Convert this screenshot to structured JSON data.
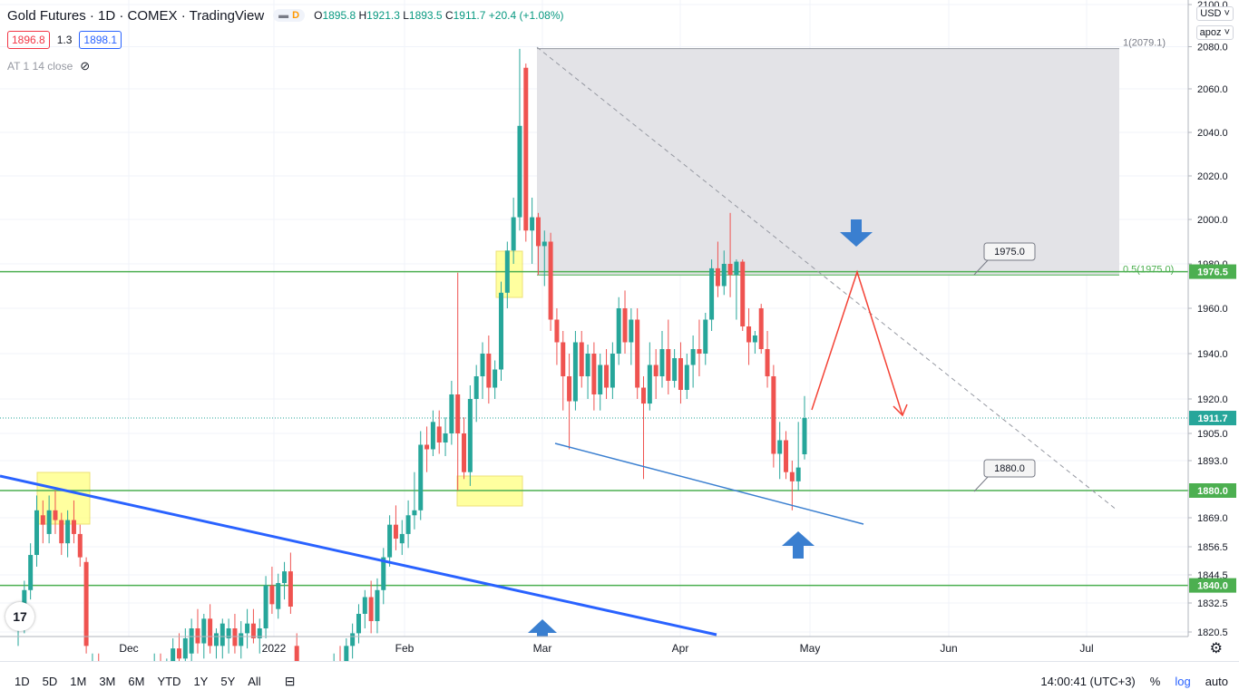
{
  "header": {
    "title": "Gold Futures · 1D · COMEX · TradingView",
    "pill_left": "",
    "pill_right": "D",
    "ohlc": {
      "o_label": "O",
      "o": "1895.8",
      "h_label": "H",
      "h": "1921.3",
      "l_label": "L",
      "l": "1893.5",
      "c_label": "C",
      "c": "1911.7",
      "chg": "+20.4 (+1.08%)"
    }
  },
  "trade": {
    "sell": "1896.8",
    "spread": "1.3",
    "buy": "1898.1"
  },
  "indicator": {
    "label": "AT 1 14 close"
  },
  "scale": {
    "currency": "USD ˅",
    "mode": "apoz ˅"
  },
  "bottom": {
    "timeframes": [
      "1D",
      "5D",
      "1M",
      "3M",
      "6M",
      "YTD",
      "1Y",
      "5Y",
      "All"
    ],
    "time": "14:00:41 (UTC+3)",
    "percent": "%",
    "log": "log",
    "auto": "auto"
  },
  "colors": {
    "up": "#26a69a",
    "down": "#ef5350",
    "support": "#4caf50",
    "trend": "#2962ff",
    "fib_zone": "#e0e1e5",
    "arrow": "#3a7fd0",
    "projection": "#f44336",
    "highlight": "#ffff80"
  },
  "chart_data": {
    "type": "candlestick",
    "symbol": "Gold Futures",
    "interval": "1D",
    "y_ticks": [
      "2100.0",
      "2080.0",
      "2060.0",
      "2040.0",
      "2020.0",
      "2000.0",
      "1980.0",
      "1960.0",
      "1940.0",
      "1920.0",
      "1905.0",
      "1893.0",
      "1880.0",
      "1869.0",
      "1856.5",
      "1844.5",
      "1832.5",
      "1820.5"
    ],
    "x_ticks": [
      "Dec",
      "2022",
      "Feb",
      "Mar",
      "Apr",
      "May",
      "Jun",
      "Jul"
    ],
    "price_labels": [
      {
        "text": "1976.5",
        "value": 1976.5,
        "color": "#4caf50"
      },
      {
        "text": "1911.7",
        "value": 1911.7,
        "color": "#26a69a"
      },
      {
        "text": "1880.0",
        "value": 1880.0,
        "color": "#4caf50"
      },
      {
        "text": "1840.0",
        "value": 1840.0,
        "color": "#4caf50"
      }
    ],
    "horizontal_levels": [
      1976.5,
      1880.0,
      1840.0
    ],
    "callouts": [
      {
        "text": "1975.0",
        "value": 1975.0
      },
      {
        "text": "1880.0",
        "value": 1880.0
      }
    ],
    "fib_labels": [
      {
        "text": "1(2079.1)",
        "value": 2079.1
      },
      {
        "text": "0.5(1975.0)",
        "value": 1975.0
      }
    ],
    "last_price": 1911.7,
    "candles": [
      {
        "o": 1822,
        "h": 1832,
        "l": 1815,
        "c": 1826
      },
      {
        "o": 1826,
        "h": 1842,
        "l": 1820,
        "c": 1838
      },
      {
        "o": 1838,
        "h": 1858,
        "l": 1834,
        "c": 1853
      },
      {
        "o": 1853,
        "h": 1878,
        "l": 1848,
        "c": 1872
      },
      {
        "o": 1870,
        "h": 1876,
        "l": 1858,
        "c": 1866
      },
      {
        "o": 1862,
        "h": 1878,
        "l": 1858,
        "c": 1872
      },
      {
        "o": 1872,
        "h": 1880,
        "l": 1862,
        "c": 1868
      },
      {
        "o": 1868,
        "h": 1871,
        "l": 1853,
        "c": 1858
      },
      {
        "o": 1858,
        "h": 1872,
        "l": 1852,
        "c": 1868
      },
      {
        "o": 1868,
        "h": 1876,
        "l": 1858,
        "c": 1862
      },
      {
        "o": 1862,
        "h": 1866,
        "l": 1848,
        "c": 1852
      },
      {
        "o": 1850,
        "h": 1852,
        "l": 1812,
        "c": 1815
      },
      {
        "o": 1798,
        "h": 1812,
        "l": 1792,
        "c": 1806
      },
      {
        "o": 1806,
        "h": 1812,
        "l": 1796,
        "c": 1800
      },
      {
        "o": 1800,
        "h": 1808,
        "l": 1790,
        "c": 1795
      },
      {
        "o": 1795,
        "h": 1800,
        "l": 1780,
        "c": 1788
      },
      {
        "o": 1788,
        "h": 1798,
        "l": 1782,
        "c": 1792
      },
      {
        "o": 1792,
        "h": 1800,
        "l": 1784,
        "c": 1786
      },
      {
        "o": 1786,
        "h": 1796,
        "l": 1780,
        "c": 1790
      },
      {
        "o": 1790,
        "h": 1805,
        "l": 1786,
        "c": 1800
      },
      {
        "o": 1800,
        "h": 1808,
        "l": 1792,
        "c": 1796
      },
      {
        "o": 1796,
        "h": 1806,
        "l": 1790,
        "c": 1802
      },
      {
        "o": 1802,
        "h": 1812,
        "l": 1796,
        "c": 1806
      },
      {
        "o": 1806,
        "h": 1812,
        "l": 1798,
        "c": 1802
      },
      {
        "o": 1802,
        "h": 1810,
        "l": 1796,
        "c": 1808
      },
      {
        "o": 1808,
        "h": 1818,
        "l": 1804,
        "c": 1814
      },
      {
        "o": 1814,
        "h": 1820,
        "l": 1806,
        "c": 1810
      },
      {
        "o": 1810,
        "h": 1822,
        "l": 1806,
        "c": 1818
      },
      {
        "o": 1812,
        "h": 1826,
        "l": 1806,
        "c": 1822
      },
      {
        "o": 1822,
        "h": 1830,
        "l": 1812,
        "c": 1816
      },
      {
        "o": 1816,
        "h": 1828,
        "l": 1810,
        "c": 1826
      },
      {
        "o": 1826,
        "h": 1832,
        "l": 1812,
        "c": 1815
      },
      {
        "o": 1815,
        "h": 1822,
        "l": 1810,
        "c": 1820
      },
      {
        "o": 1815,
        "h": 1826,
        "l": 1810,
        "c": 1824
      },
      {
        "o": 1818,
        "h": 1826,
        "l": 1812,
        "c": 1822
      },
      {
        "o": 1822,
        "h": 1828,
        "l": 1812,
        "c": 1815
      },
      {
        "o": 1815,
        "h": 1825,
        "l": 1810,
        "c": 1820
      },
      {
        "o": 1820,
        "h": 1830,
        "l": 1814,
        "c": 1824
      },
      {
        "o": 1824,
        "h": 1830,
        "l": 1816,
        "c": 1818
      },
      {
        "o": 1818,
        "h": 1826,
        "l": 1812,
        "c": 1822
      },
      {
        "o": 1822,
        "h": 1844,
        "l": 1818,
        "c": 1840
      },
      {
        "o": 1840,
        "h": 1848,
        "l": 1828,
        "c": 1832
      },
      {
        "o": 1830,
        "h": 1845,
        "l": 1826,
        "c": 1841
      },
      {
        "o": 1841,
        "h": 1850,
        "l": 1834,
        "c": 1846
      },
      {
        "o": 1846,
        "h": 1854,
        "l": 1828,
        "c": 1831
      },
      {
        "o": 1815,
        "h": 1820,
        "l": 1790,
        "c": 1795
      },
      {
        "o": 1795,
        "h": 1800,
        "l": 1782,
        "c": 1790
      },
      {
        "o": 1790,
        "h": 1800,
        "l": 1784,
        "c": 1796
      },
      {
        "o": 1796,
        "h": 1806,
        "l": 1788,
        "c": 1800
      },
      {
        "o": 1800,
        "h": 1808,
        "l": 1794,
        "c": 1796
      },
      {
        "o": 1796,
        "h": 1806,
        "l": 1790,
        "c": 1803
      },
      {
        "o": 1803,
        "h": 1812,
        "l": 1796,
        "c": 1808
      },
      {
        "o": 1808,
        "h": 1815,
        "l": 1800,
        "c": 1805
      },
      {
        "o": 1805,
        "h": 1818,
        "l": 1800,
        "c": 1815
      },
      {
        "o": 1815,
        "h": 1824,
        "l": 1810,
        "c": 1820
      },
      {
        "o": 1820,
        "h": 1832,
        "l": 1816,
        "c": 1828
      },
      {
        "o": 1828,
        "h": 1838,
        "l": 1822,
        "c": 1835
      },
      {
        "o": 1835,
        "h": 1842,
        "l": 1820,
        "c": 1825
      },
      {
        "o": 1825,
        "h": 1843,
        "l": 1820,
        "c": 1838
      },
      {
        "o": 1838,
        "h": 1856,
        "l": 1832,
        "c": 1852
      },
      {
        "o": 1852,
        "h": 1870,
        "l": 1848,
        "c": 1866
      },
      {
        "o": 1866,
        "h": 1874,
        "l": 1855,
        "c": 1860
      },
      {
        "o": 1858,
        "h": 1868,
        "l": 1853,
        "c": 1862
      },
      {
        "o": 1862,
        "h": 1876,
        "l": 1856,
        "c": 1870
      },
      {
        "o": 1870,
        "h": 1888,
        "l": 1864,
        "c": 1872
      },
      {
        "o": 1872,
        "h": 1906,
        "l": 1868,
        "c": 1900
      },
      {
        "o": 1900,
        "h": 1908,
        "l": 1888,
        "c": 1898
      },
      {
        "o": 1898,
        "h": 1915,
        "l": 1895,
        "c": 1910
      },
      {
        "o": 1908,
        "h": 1915,
        "l": 1896,
        "c": 1901
      },
      {
        "o": 1901,
        "h": 1912,
        "l": 1895,
        "c": 1905
      },
      {
        "o": 1905,
        "h": 1928,
        "l": 1900,
        "c": 1922
      },
      {
        "o": 1922,
        "h": 1976,
        "l": 1880,
        "c": 1905
      },
      {
        "o": 1905,
        "h": 1912,
        "l": 1885,
        "c": 1888
      },
      {
        "o": 1888,
        "h": 1926,
        "l": 1882,
        "c": 1920
      },
      {
        "o": 1920,
        "h": 1935,
        "l": 1910,
        "c": 1930
      },
      {
        "o": 1930,
        "h": 1945,
        "l": 1920,
        "c": 1940
      },
      {
        "o": 1940,
        "h": 1948,
        "l": 1918,
        "c": 1925
      },
      {
        "o": 1925,
        "h": 1937,
        "l": 1920,
        "c": 1933
      },
      {
        "o": 1933,
        "h": 1972,
        "l": 1928,
        "c": 1967
      },
      {
        "o": 1967,
        "h": 1990,
        "l": 1960,
        "c": 1986
      },
      {
        "o": 1986,
        "h": 2010,
        "l": 1980,
        "c": 2001
      },
      {
        "o": 2001,
        "h": 2079,
        "l": 1995,
        "c": 2043
      },
      {
        "o": 2070,
        "h": 2072,
        "l": 1990,
        "c": 1995
      },
      {
        "o": 1995,
        "h": 2010,
        "l": 1980,
        "c": 2001
      },
      {
        "o": 2001,
        "h": 2003,
        "l": 1975,
        "c": 1988
      },
      {
        "o": 1988,
        "h": 1995,
        "l": 1970,
        "c": 1990
      },
      {
        "o": 1990,
        "h": 1994,
        "l": 1950,
        "c": 1955
      },
      {
        "o": 1955,
        "h": 1960,
        "l": 1935,
        "c": 1945
      },
      {
        "o": 1945,
        "h": 1950,
        "l": 1915,
        "c": 1930
      },
      {
        "o": 1930,
        "h": 1940,
        "l": 1898,
        "c": 1919
      },
      {
        "o": 1919,
        "h": 1950,
        "l": 1915,
        "c": 1945
      },
      {
        "o": 1945,
        "h": 1950,
        "l": 1925,
        "c": 1930
      },
      {
        "o": 1930,
        "h": 1944,
        "l": 1920,
        "c": 1940
      },
      {
        "o": 1940,
        "h": 1945,
        "l": 1915,
        "c": 1922
      },
      {
        "o": 1922,
        "h": 1940,
        "l": 1915,
        "c": 1935
      },
      {
        "o": 1935,
        "h": 1942,
        "l": 1920,
        "c": 1925
      },
      {
        "o": 1925,
        "h": 1945,
        "l": 1920,
        "c": 1940
      },
      {
        "o": 1940,
        "h": 1965,
        "l": 1935,
        "c": 1960
      },
      {
        "o": 1960,
        "h": 1968,
        "l": 1940,
        "c": 1945
      },
      {
        "o": 1945,
        "h": 1960,
        "l": 1935,
        "c": 1955
      },
      {
        "o": 1955,
        "h": 1960,
        "l": 1920,
        "c": 1925
      },
      {
        "o": 1925,
        "h": 1930,
        "l": 1885,
        "c": 1918
      },
      {
        "o": 1918,
        "h": 1945,
        "l": 1915,
        "c": 1935
      },
      {
        "o": 1935,
        "h": 1942,
        "l": 1920,
        "c": 1930
      },
      {
        "o": 1930,
        "h": 1950,
        "l": 1925,
        "c": 1942
      },
      {
        "o": 1942,
        "h": 1955,
        "l": 1922,
        "c": 1928
      },
      {
        "o": 1928,
        "h": 1942,
        "l": 1925,
        "c": 1938
      },
      {
        "o": 1938,
        "h": 1945,
        "l": 1918,
        "c": 1924
      },
      {
        "o": 1924,
        "h": 1940,
        "l": 1920,
        "c": 1935
      },
      {
        "o": 1935,
        "h": 1948,
        "l": 1925,
        "c": 1942
      },
      {
        "o": 1942,
        "h": 1955,
        "l": 1930,
        "c": 1940
      },
      {
        "o": 1940,
        "h": 1958,
        "l": 1935,
        "c": 1955
      },
      {
        "o": 1955,
        "h": 1982,
        "l": 1950,
        "c": 1978
      },
      {
        "o": 1978,
        "h": 1990,
        "l": 1965,
        "c": 1970
      },
      {
        "o": 1970,
        "h": 1986,
        "l": 1966,
        "c": 1980
      },
      {
        "o": 1980,
        "h": 2003,
        "l": 1965,
        "c": 1975
      },
      {
        "o": 1975,
        "h": 1982,
        "l": 1955,
        "c": 1981
      },
      {
        "o": 1981,
        "h": 1982,
        "l": 1950,
        "c": 1952
      },
      {
        "o": 1952,
        "h": 1960,
        "l": 1935,
        "c": 1945
      },
      {
        "o": 1945,
        "h": 1950,
        "l": 1940,
        "c": 1948
      },
      {
        "o": 1960,
        "h": 1962,
        "l": 1940,
        "c": 1942
      },
      {
        "o": 1942,
        "h": 1950,
        "l": 1925,
        "c": 1930
      },
      {
        "o": 1930,
        "h": 1935,
        "l": 1890,
        "c": 1896
      },
      {
        "o": 1896,
        "h": 1910,
        "l": 1885,
        "c": 1902
      },
      {
        "o": 1902,
        "h": 1906,
        "l": 1885,
        "c": 1888
      },
      {
        "o": 1888,
        "h": 1893,
        "l": 1872,
        "c": 1884
      },
      {
        "o": 1884,
        "h": 1910,
        "l": 1880,
        "c": 1890
      },
      {
        "o": 1895.8,
        "h": 1921.3,
        "l": 1893.5,
        "c": 1911.7
      }
    ]
  }
}
